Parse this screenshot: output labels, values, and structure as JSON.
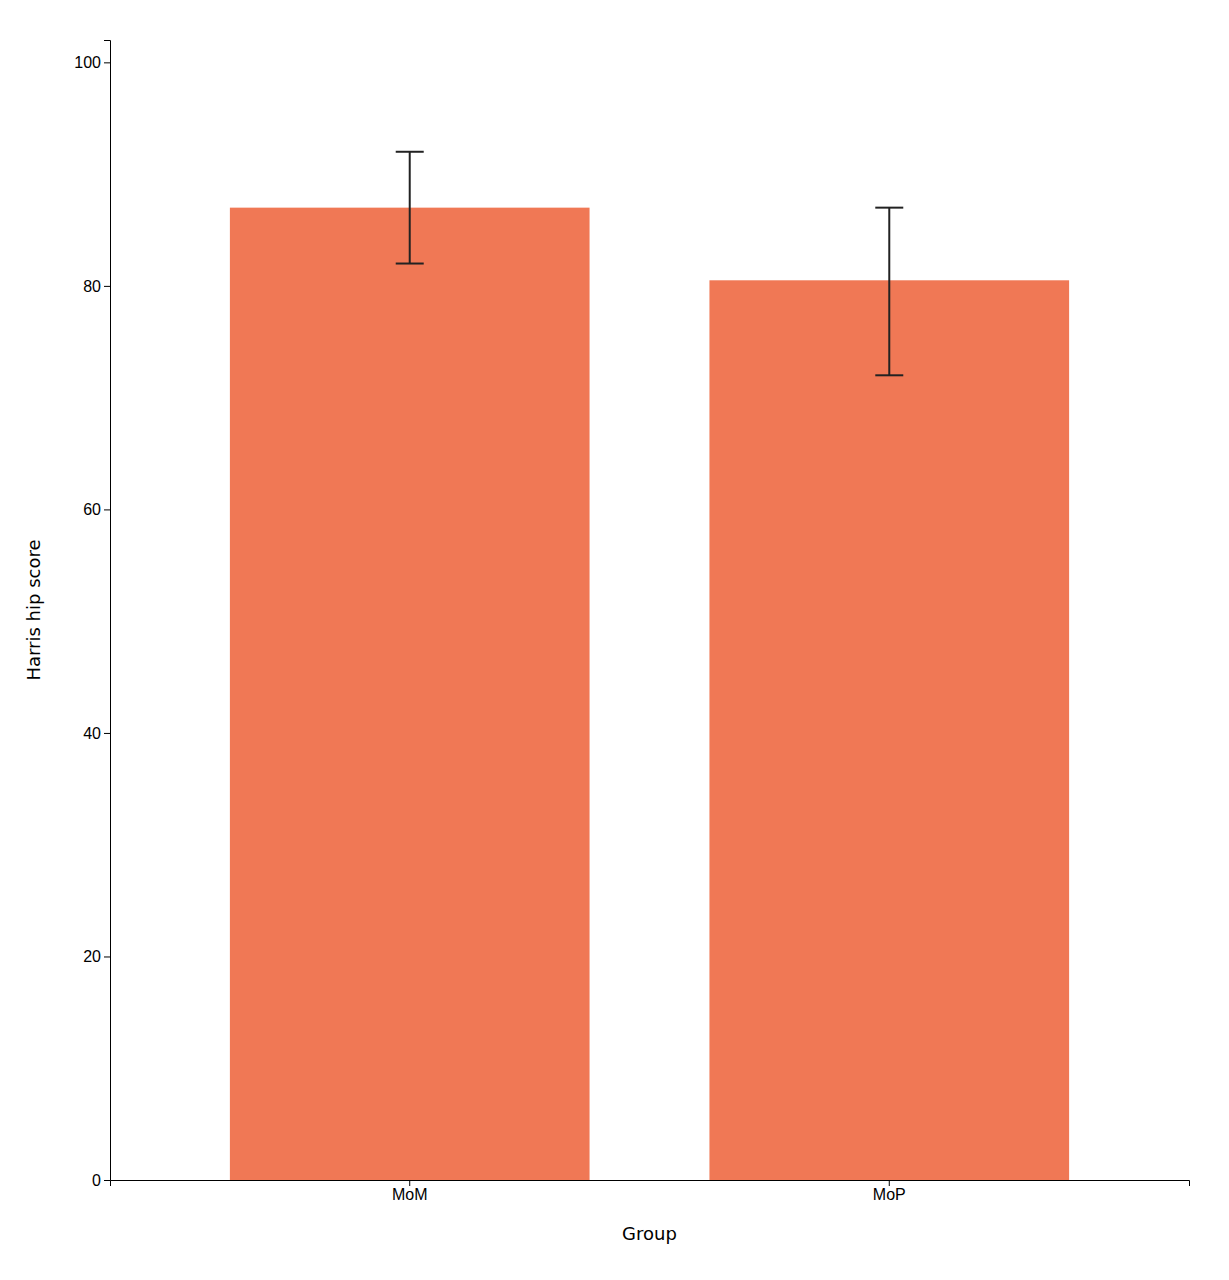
{
  "chart_data": {
    "type": "bar",
    "categories": [
      "MoM",
      "MoP"
    ],
    "values": [
      87.0,
      80.5
    ],
    "errors_upper": [
      5.0,
      6.5
    ],
    "errors_lower": [
      5.0,
      8.5
    ],
    "color": "#F07855",
    "xlabel": "Group",
    "ylabel": "Harris hip score",
    "ylim": [
      0,
      102
    ],
    "yticks": [
      0,
      20,
      40,
      60,
      80,
      100
    ],
    "grid": false
  }
}
